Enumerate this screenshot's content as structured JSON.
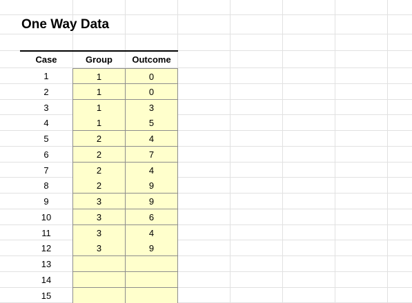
{
  "sheet": {
    "title": "One Way Data",
    "headers": {
      "case": "Case",
      "group": "Group",
      "outcome": "Outcome"
    },
    "rows": [
      {
        "case": "1",
        "group": "1",
        "outcome": "0"
      },
      {
        "case": "2",
        "group": "1",
        "outcome": "0"
      },
      {
        "case": "3",
        "group": "1",
        "outcome": "3"
      },
      {
        "case": "4",
        "group": "1",
        "outcome": "5"
      },
      {
        "case": "5",
        "group": "2",
        "outcome": "4"
      },
      {
        "case": "6",
        "group": "2",
        "outcome": "7"
      },
      {
        "case": "7",
        "group": "2",
        "outcome": "4"
      },
      {
        "case": "8",
        "group": "2",
        "outcome": "9"
      },
      {
        "case": "9",
        "group": "3",
        "outcome": "9"
      },
      {
        "case": "10",
        "group": "3",
        "outcome": "6"
      },
      {
        "case": "11",
        "group": "3",
        "outcome": "4"
      },
      {
        "case": "12",
        "group": "3",
        "outcome": "9"
      },
      {
        "case": "13",
        "group": "",
        "outcome": ""
      },
      {
        "case": "14",
        "group": "",
        "outcome": ""
      },
      {
        "case": "15",
        "group": "",
        "outcome": ""
      }
    ],
    "colors": {
      "input_fill": "#ffffcc",
      "input_border": "#8c8c8c",
      "gridline": "#e1e1e1"
    }
  }
}
